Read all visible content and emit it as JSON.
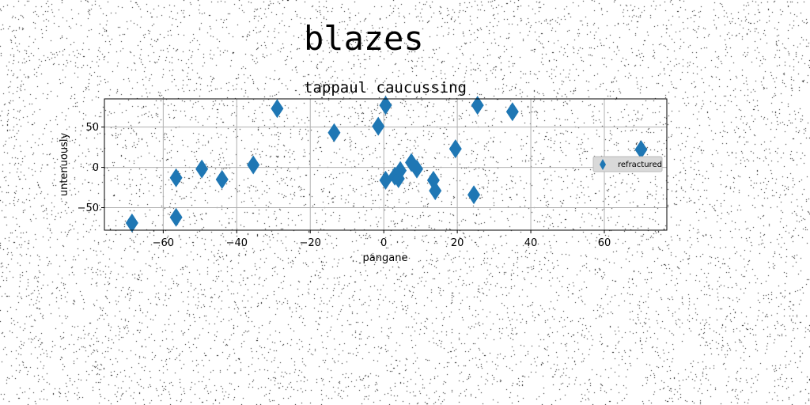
{
  "figure": {
    "suptitle": "blazes"
  },
  "chart_data": {
    "type": "scatter",
    "title": "tappaul caucussing",
    "xlabel": "pangane",
    "ylabel": "untenuously",
    "xlim": [
      -76,
      77
    ],
    "ylim": [
      -78,
      85
    ],
    "xticks": [
      -60,
      -40,
      -20,
      0,
      20,
      40,
      60
    ],
    "yticks": [
      -50,
      0,
      50
    ],
    "xtick_labels": [
      "−60",
      "−40",
      "−20",
      "0",
      "20",
      "40",
      "60"
    ],
    "ytick_labels": [
      "−50",
      "0",
      "50"
    ],
    "grid": true,
    "legend_position": "center-right",
    "series": [
      {
        "name": "refractured",
        "marker": "thin-diamond",
        "color": "#1f77b4",
        "points": [
          {
            "x": -68.5,
            "y": -69
          },
          {
            "x": -56.5,
            "y": -13
          },
          {
            "x": -56.5,
            "y": -62
          },
          {
            "x": -49.5,
            "y": -2
          },
          {
            "x": -44,
            "y": -15
          },
          {
            "x": -35.5,
            "y": 3
          },
          {
            "x": -29,
            "y": 73
          },
          {
            "x": -13.5,
            "y": 43
          },
          {
            "x": -1.5,
            "y": 51
          },
          {
            "x": 0.5,
            "y": 77
          },
          {
            "x": 0.5,
            "y": -16
          },
          {
            "x": 3,
            "y": -11
          },
          {
            "x": 4,
            "y": -14
          },
          {
            "x": 4.5,
            "y": -4
          },
          {
            "x": 7.5,
            "y": 6
          },
          {
            "x": 9,
            "y": -2
          },
          {
            "x": 13.5,
            "y": -16
          },
          {
            "x": 14,
            "y": -29
          },
          {
            "x": 19.5,
            "y": 23
          },
          {
            "x": 24.5,
            "y": -34
          },
          {
            "x": 25.5,
            "y": 77
          },
          {
            "x": 35,
            "y": 69
          },
          {
            "x": 70,
            "y": 22
          }
        ]
      }
    ]
  }
}
